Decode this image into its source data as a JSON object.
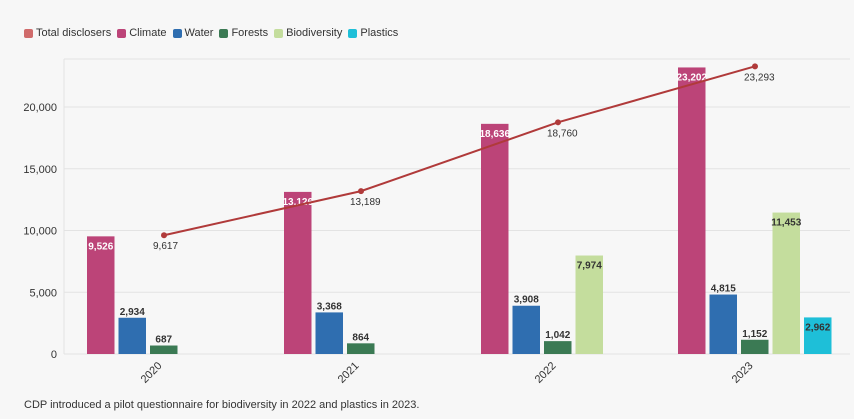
{
  "chart_data": {
    "type": "bar",
    "categories": [
      "2020",
      "2021",
      "2022",
      "2023"
    ],
    "ylim": [
      0,
      25000
    ],
    "yticks": [
      0,
      5000,
      10000,
      15000,
      20000
    ],
    "ytick_labels": [
      "0",
      "5,000",
      "10,000",
      "15,000",
      "20,000"
    ],
    "grid": true,
    "legend_position": "top-left",
    "line_series": {
      "name": "Total disclosers",
      "color": "#b03a3a",
      "values": [
        9617,
        13189,
        18760,
        23293
      ],
      "labels": [
        "9,617",
        "13,189",
        "18,760",
        "23,293"
      ]
    },
    "series": [
      {
        "name": "Climate",
        "color": "#bc4478",
        "values": [
          9526,
          13126,
          18636,
          23202
        ],
        "labels": [
          "9,526",
          "13,126",
          "18,636",
          "23,202"
        ]
      },
      {
        "name": "Water",
        "color": "#2f6eb0",
        "values": [
          2934,
          3368,
          3908,
          4815
        ],
        "labels": [
          "2,934",
          "3,368",
          "3,908",
          "4,815"
        ]
      },
      {
        "name": "Forests",
        "color": "#3b7a54",
        "values": [
          687,
          864,
          1042,
          1152
        ],
        "labels": [
          "687",
          "864",
          "1,042",
          "1,152"
        ]
      },
      {
        "name": "Biodiversity",
        "color": "#c4dd9d",
        "values": [
          null,
          null,
          7974,
          11453
        ],
        "labels": [
          "",
          "",
          "7,974",
          "11,453"
        ]
      },
      {
        "name": "Plastics",
        "color": "#1ebfd8",
        "values": [
          null,
          null,
          null,
          2962
        ],
        "labels": [
          "",
          "",
          "",
          "2,962"
        ]
      }
    ]
  },
  "legend": {
    "items": [
      {
        "label": "Total disclosers",
        "color": "#d06b6b"
      },
      {
        "label": "Climate",
        "color": "#bc4478"
      },
      {
        "label": "Water",
        "color": "#2f6eb0"
      },
      {
        "label": "Forests",
        "color": "#3b7a54"
      },
      {
        "label": "Biodiversity",
        "color": "#c4dd9d"
      },
      {
        "label": "Plastics",
        "color": "#1ebfd8"
      }
    ]
  },
  "footnote": "CDP introduced a pilot questionnaire for biodiversity in 2022 and plastics in 2023."
}
